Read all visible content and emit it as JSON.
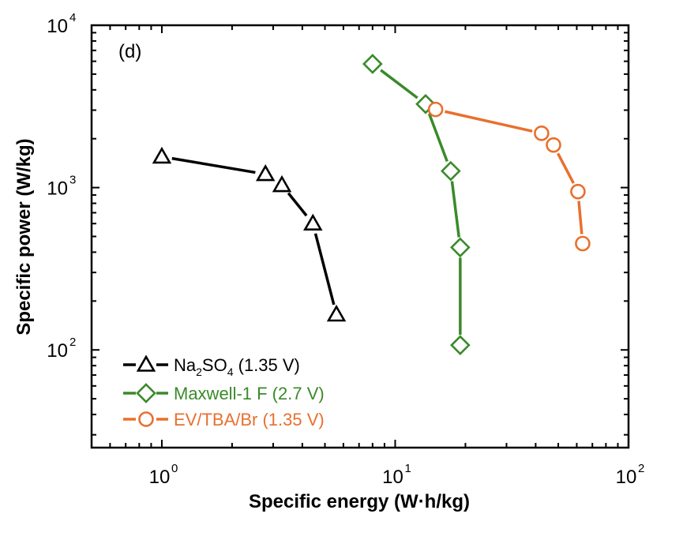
{
  "chart_data": {
    "type": "line",
    "panel_label": "(d)",
    "title": "",
    "xlabel": "Specific energy (W·h/kg)",
    "ylabel": "Specific power (W/kg)",
    "xscale": "log",
    "yscale": "log",
    "xlim": [
      0.5,
      100
    ],
    "ylim": [
      25,
      10000
    ],
    "x_ticks": [
      {
        "value": 1,
        "base": "10",
        "exp": "0"
      },
      {
        "value": 10,
        "base": "10",
        "exp": "1"
      },
      {
        "value": 100,
        "base": "10",
        "exp": "2"
      }
    ],
    "y_ticks": [
      {
        "value": 100,
        "base": "10",
        "exp": "2"
      },
      {
        "value": 1000,
        "base": "10",
        "exp": "3"
      },
      {
        "value": 10000,
        "base": "10",
        "exp": "4"
      }
    ],
    "grid": false,
    "legend_position": "bottom-left",
    "series": [
      {
        "name": "Na2SO4 (1.35 V)",
        "legend": {
          "main": "Na",
          "sub1": "2",
          "mid": "SO",
          "sub2": "4",
          "rest": " (1.35 V)"
        },
        "color": "#000000",
        "marker": "triangle",
        "x": [
          1.0,
          2.78,
          3.27,
          4.44,
          5.6
        ],
        "y": [
          1550,
          1210,
          1035,
          600,
          165
        ]
      },
      {
        "name": "Maxwell-1 F (2.7 V)",
        "legend": {
          "main": "Maxwell-1 F (2.7 V)"
        },
        "color": "#3A8A2A",
        "marker": "diamond",
        "x": [
          8.0,
          13.5,
          17.3,
          19.0,
          19.0
        ],
        "y": [
          5780,
          3270,
          1265,
          428,
          107
        ]
      },
      {
        "name": "EV/TBA/Br (1.35 V)",
        "legend": {
          "main": "EV/TBA/Br (1.35 V)"
        },
        "color": "#E8702E",
        "marker": "circle",
        "x": [
          14.9,
          42.4,
          47.7,
          60.7,
          63.6
        ],
        "y": [
          3030,
          2160,
          1830,
          945,
          452
        ]
      }
    ]
  }
}
